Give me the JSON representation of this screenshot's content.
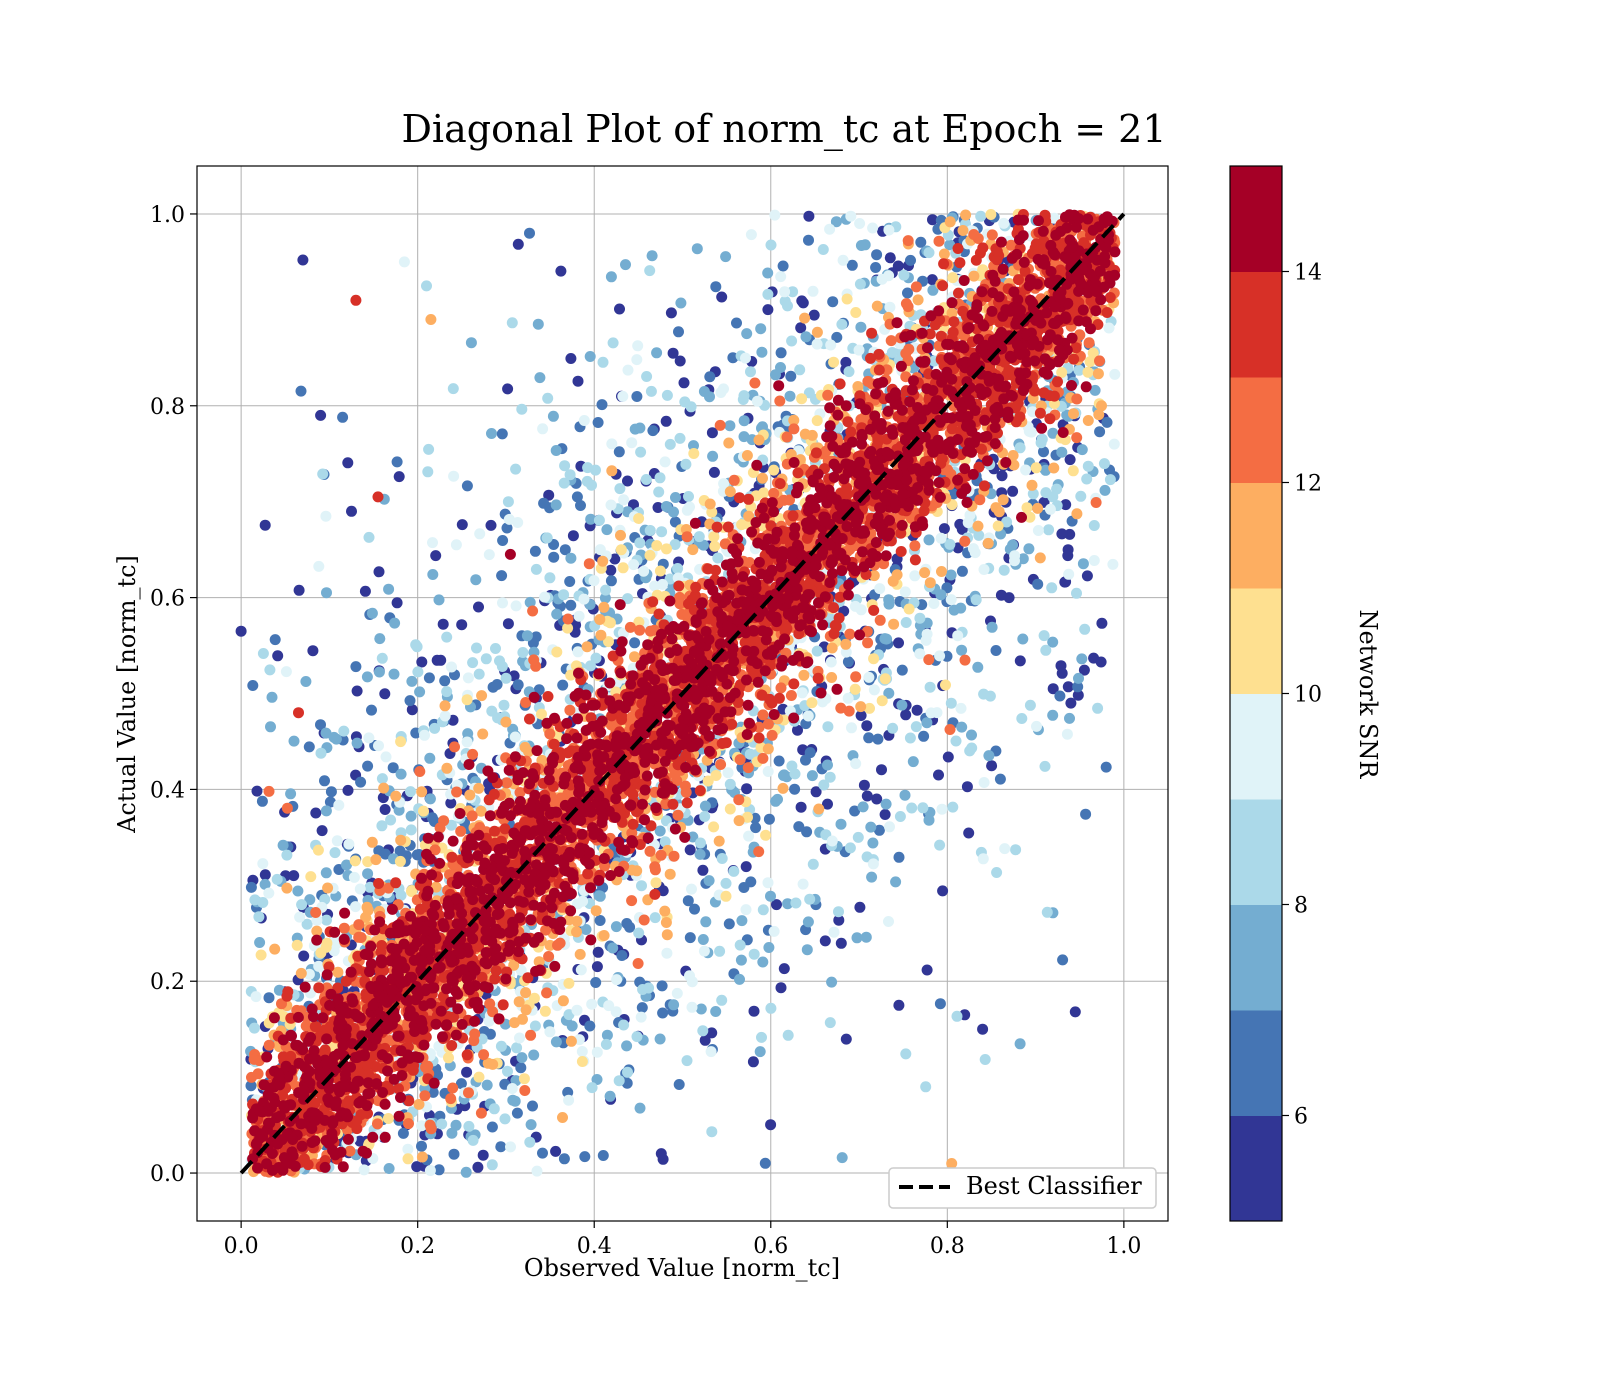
{
  "chart_data": {
    "type": "scatter",
    "title": "Diagonal Plot of norm_tc at Epoch = 21",
    "xlabel": "Observed Value [norm_tc]",
    "ylabel": "Actual Value [norm_tc]",
    "xlim": [
      -0.05,
      1.05
    ],
    "ylim": [
      -0.05,
      1.05
    ],
    "x_ticks": [
      "0.0",
      "0.2",
      "0.4",
      "0.6",
      "0.8",
      "1.0"
    ],
    "y_ticks": [
      "0.0",
      "0.2",
      "0.4",
      "0.6",
      "0.8",
      "1.0"
    ],
    "grid": true,
    "reference_line": {
      "name": "Best Classifier",
      "style": "dashed",
      "color": "#000000",
      "points": [
        [
          0.0,
          0.0
        ],
        [
          1.0,
          1.0
        ]
      ]
    },
    "legend": {
      "placement": "lower-right",
      "entries": [
        "Best Classifier"
      ]
    },
    "colorbar": {
      "label": "Network SNR",
      "range": [
        5,
        15
      ],
      "ticks": [
        "6",
        "8",
        "10",
        "12",
        "14"
      ],
      "colors": [
        "#313695",
        "#4575b4",
        "#74add1",
        "#abd9e9",
        "#e0f3f8",
        "#fee090",
        "#fdae61",
        "#f46d43",
        "#d73027",
        "#a50026"
      ]
    },
    "point_summary": {
      "description_values": "Dense diagonal band around y = x colored mostly SNR 12-15; wide scatter of low-SNR (5-9) points away from the diagonal.",
      "band_half_width_high_snr": 0.07,
      "outlier_spread_low_snr": 0.5
    },
    "sample_points": [
      {
        "x": 0.0,
        "y": 0.565,
        "snr": 5.5
      },
      {
        "x": 0.07,
        "y": 0.952,
        "snr": 5.5
      },
      {
        "x": 0.065,
        "y": 0.48,
        "snr": 13.5
      },
      {
        "x": 0.13,
        "y": 0.91,
        "snr": 13.5
      },
      {
        "x": 0.155,
        "y": 0.705,
        "snr": 13.5
      },
      {
        "x": 0.09,
        "y": 0.79,
        "snr": 5.5
      },
      {
        "x": 0.115,
        "y": 0.788,
        "snr": 6.5
      },
      {
        "x": 0.125,
        "y": 0.69,
        "snr": 5.5
      },
      {
        "x": 0.13,
        "y": 0.528,
        "snr": 6.5
      },
      {
        "x": 0.185,
        "y": 0.95,
        "snr": 9.5
      },
      {
        "x": 0.21,
        "y": 0.925,
        "snr": 8.5
      },
      {
        "x": 0.215,
        "y": 0.89,
        "snr": 11.5
      },
      {
        "x": 0.305,
        "y": 0.645,
        "snr": 14.5
      },
      {
        "x": 0.6,
        "y": 0.6,
        "snr": 14.5
      },
      {
        "x": 0.87,
        "y": 0.6,
        "snr": 5.5
      },
      {
        "x": 0.875,
        "y": 0.655,
        "snr": 5.5
      },
      {
        "x": 0.92,
        "y": 0.505,
        "snr": 5.5
      },
      {
        "x": 0.94,
        "y": 0.49,
        "snr": 5.5
      },
      {
        "x": 0.945,
        "y": 0.168,
        "snr": 5.5
      },
      {
        "x": 0.84,
        "y": 0.15,
        "snr": 5.5
      },
      {
        "x": 0.79,
        "y": 0.415,
        "snr": 5.5
      },
      {
        "x": 0.72,
        "y": 0.39,
        "snr": 5.5
      },
      {
        "x": 0.855,
        "y": 0.44,
        "snr": 6.5
      },
      {
        "x": 0.805,
        "y": 0.01,
        "snr": 11.5
      },
      {
        "x": 0.92,
        "y": 0.96,
        "snr": 14.5
      },
      {
        "x": 0.95,
        "y": 0.93,
        "snr": 14.5
      }
    ]
  }
}
